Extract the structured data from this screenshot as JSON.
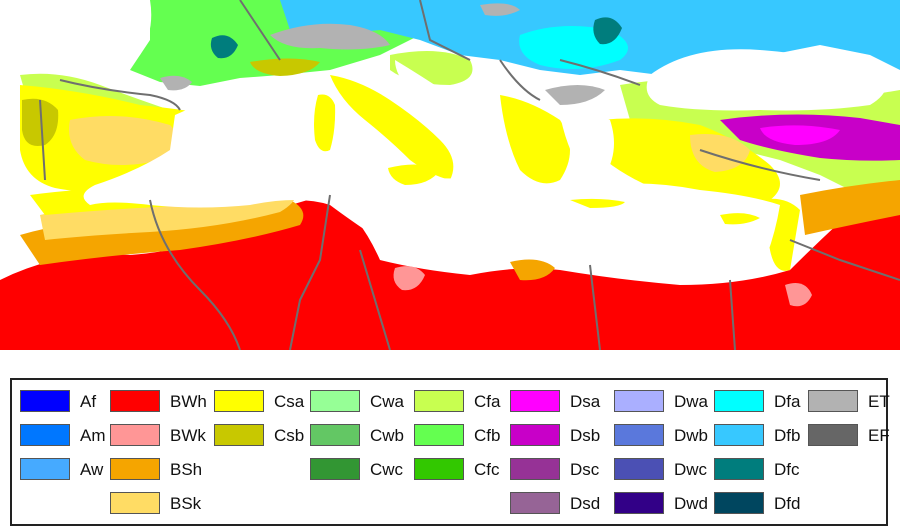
{
  "colors": {
    "sea": "#ffffff",
    "border": "#6f6f6f"
  },
  "legend": {
    "columns": [
      [
        {
          "code": "Af",
          "color": "#0000ff"
        },
        {
          "code": "Am",
          "color": "#0077ff"
        },
        {
          "code": "Aw",
          "color": "#46aaff"
        }
      ],
      [
        {
          "code": "BWh",
          "color": "#ff0000"
        },
        {
          "code": "BWk",
          "color": "#ff9696"
        },
        {
          "code": "BSh",
          "color": "#f5a500"
        },
        {
          "code": "BSk",
          "color": "#ffdc64"
        }
      ],
      [
        {
          "code": "Csa",
          "color": "#ffff00"
        },
        {
          "code": "Csb",
          "color": "#c8c800"
        }
      ],
      [
        {
          "code": "Cwa",
          "color": "#96ff96"
        },
        {
          "code": "Cwb",
          "color": "#63c764"
        },
        {
          "code": "Cwc",
          "color": "#329633"
        }
      ],
      [
        {
          "code": "Cfa",
          "color": "#c8ff50"
        },
        {
          "code": "Cfb",
          "color": "#64ff50"
        },
        {
          "code": "Cfc",
          "color": "#32c800"
        }
      ],
      [
        {
          "code": "Dsa",
          "color": "#ff00ff"
        },
        {
          "code": "Dsb",
          "color": "#c800c8"
        },
        {
          "code": "Dsc",
          "color": "#963296"
        },
        {
          "code": "Dsd",
          "color": "#966496"
        }
      ],
      [
        {
          "code": "Dwa",
          "color": "#aaafff"
        },
        {
          "code": "Dwb",
          "color": "#5a78dc"
        },
        {
          "code": "Dwc",
          "color": "#4b50b4"
        },
        {
          "code": "Dwd",
          "color": "#320087"
        }
      ],
      [
        {
          "code": "Dfa",
          "color": "#00ffff"
        },
        {
          "code": "Dfb",
          "color": "#37c8ff"
        },
        {
          "code": "Dfc",
          "color": "#007d7d"
        },
        {
          "code": "Dfd",
          "color": "#00465f"
        }
      ],
      [
        {
          "code": "ET",
          "color": "#b2b2b2"
        },
        {
          "code": "EF",
          "color": "#666666"
        }
      ]
    ]
  }
}
